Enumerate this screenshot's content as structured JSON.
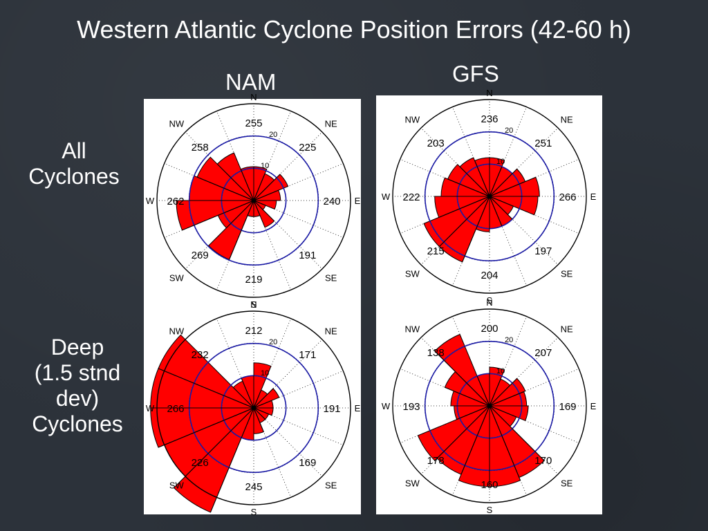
{
  "slide": {
    "title": "Western Atlantic Cyclone Position Errors (42-60 h)",
    "columns": [
      "NAM",
      "GFS"
    ],
    "rows": [
      "All\nCyclones",
      "Deep\n(1.5 stnd\ndev)\nCyclones"
    ]
  },
  "colors": {
    "wedge": "#ff0000",
    "ring": "#1a1aa6",
    "axis": "#000000"
  },
  "chart_data": [
    {
      "type": "polar-bar",
      "model": "NAM",
      "subset": "All Cyclones",
      "directions": [
        "N",
        "NE",
        "E",
        "SE",
        "S",
        "SW",
        "W",
        "NW"
      ],
      "sector_labels": [
        "255",
        "225",
        "240",
        "191",
        "219",
        "269",
        "262",
        "258"
      ],
      "ring_labels": [
        "20",
        "10"
      ],
      "wedges": [
        {
          "from": 0,
          "to": 22.5,
          "r": 10.5
        },
        {
          "from": 22.5,
          "to": 45,
          "r": 9
        },
        {
          "from": 45,
          "to": 67.5,
          "r": 11.5
        },
        {
          "from": 67.5,
          "to": 90,
          "r": 8.3
        },
        {
          "from": 90,
          "to": 112.5,
          "r": 7
        },
        {
          "from": 112.5,
          "to": 135,
          "r": 4
        },
        {
          "from": 135,
          "to": 157.5,
          "r": 9
        },
        {
          "from": 157.5,
          "to": 180,
          "r": 5
        },
        {
          "from": 180,
          "to": 202.5,
          "r": 5
        },
        {
          "from": 202.5,
          "to": 225,
          "r": 19.8
        },
        {
          "from": 225,
          "to": 247.5,
          "r": 12
        },
        {
          "from": 247.5,
          "to": 270,
          "r": 24
        },
        {
          "from": 270,
          "to": 292.5,
          "r": 20
        },
        {
          "from": 292.5,
          "to": 315,
          "r": 19
        },
        {
          "from": 315,
          "to": 337.5,
          "r": 16
        },
        {
          "from": 337.5,
          "to": 360,
          "r": 10.5
        }
      ]
    },
    {
      "type": "polar-bar",
      "model": "GFS",
      "subset": "All Cyclones",
      "directions": [
        "N",
        "NE",
        "E",
        "SE",
        "S",
        "SW",
        "W",
        "NW"
      ],
      "sector_labels": [
        "236",
        "251",
        "266",
        "197",
        "204",
        "215",
        "222",
        "203"
      ],
      "ring_labels": [
        "20",
        "10"
      ],
      "wedges": [
        {
          "from": 0,
          "to": 22.5,
          "r": 12
        },
        {
          "from": 22.5,
          "to": 45,
          "r": 10
        },
        {
          "from": 45,
          "to": 67.5,
          "r": 12
        },
        {
          "from": 67.5,
          "to": 90,
          "r": 15.5
        },
        {
          "from": 90,
          "to": 112.5,
          "r": 15
        },
        {
          "from": 112.5,
          "to": 135,
          "r": 8
        },
        {
          "from": 135,
          "to": 157.5,
          "r": 10
        },
        {
          "from": 157.5,
          "to": 180,
          "r": 10
        },
        {
          "from": 180,
          "to": 202.5,
          "r": 11
        },
        {
          "from": 202.5,
          "to": 225,
          "r": 22
        },
        {
          "from": 225,
          "to": 247.5,
          "r": 22
        },
        {
          "from": 247.5,
          "to": 270,
          "r": 17
        },
        {
          "from": 270,
          "to": 292.5,
          "r": 15
        },
        {
          "from": 292.5,
          "to": 315,
          "r": 14
        },
        {
          "from": 315,
          "to": 337.5,
          "r": 13
        },
        {
          "from": 337.5,
          "to": 360,
          "r": 12
        }
      ]
    },
    {
      "type": "polar-bar",
      "model": "NAM",
      "subset": "Deep (1.5 stnd dev) Cyclones",
      "directions": [
        "N",
        "NE",
        "E",
        "SE",
        "S",
        "SW",
        "W",
        "NW"
      ],
      "sector_labels": [
        "212",
        "171",
        "191",
        "169",
        "245",
        "226",
        "266",
        "232"
      ],
      "ring_labels": [
        "20",
        "10"
      ],
      "wedges": [
        {
          "from": 0,
          "to": 22.5,
          "r": 14
        },
        {
          "from": 22.5,
          "to": 45,
          "r": 6
        },
        {
          "from": 45,
          "to": 67.5,
          "r": 8.5
        },
        {
          "from": 67.5,
          "to": 90,
          "r": 6
        },
        {
          "from": 90,
          "to": 112.5,
          "r": 6
        },
        {
          "from": 112.5,
          "to": 135,
          "r": 5
        },
        {
          "from": 135,
          "to": 157.5,
          "r": 5
        },
        {
          "from": 157.5,
          "to": 180,
          "r": 8
        },
        {
          "from": 180,
          "to": 202.5,
          "r": 10
        },
        {
          "from": 202.5,
          "to": 225,
          "r": 35
        },
        {
          "from": 225,
          "to": 247.5,
          "r": 30
        },
        {
          "from": 247.5,
          "to": 270,
          "r": 32
        },
        {
          "from": 270,
          "to": 292.5,
          "r": 32
        },
        {
          "from": 292.5,
          "to": 315,
          "r": 32
        },
        {
          "from": 315,
          "to": 337.5,
          "r": 9
        },
        {
          "from": 337.5,
          "to": 360,
          "r": 10
        }
      ]
    },
    {
      "type": "polar-bar",
      "model": "GFS",
      "subset": "Deep (1.5 stnd dev) Cyclones",
      "directions": [
        "N",
        "NE",
        "E",
        "SE",
        "S",
        "SW",
        "W",
        "NW"
      ],
      "sector_labels": [
        "200",
        "207",
        "169",
        "170",
        "160",
        "178",
        "193",
        "138"
      ],
      "ring_labels": [
        "20",
        "10"
      ],
      "wedges": [
        {
          "from": 0,
          "to": 22.5,
          "r": 12
        },
        {
          "from": 22.5,
          "to": 45,
          "r": 9
        },
        {
          "from": 45,
          "to": 67.5,
          "r": 12
        },
        {
          "from": 67.5,
          "to": 90,
          "r": 11.5
        },
        {
          "from": 90,
          "to": 112.5,
          "r": 12
        },
        {
          "from": 112.5,
          "to": 135,
          "r": 9
        },
        {
          "from": 135,
          "to": 157.5,
          "r": 24
        },
        {
          "from": 157.5,
          "to": 180,
          "r": 25
        },
        {
          "from": 180,
          "to": 202.5,
          "r": 25
        },
        {
          "from": 202.5,
          "to": 225,
          "r": 23
        },
        {
          "from": 225,
          "to": 247.5,
          "r": 24
        },
        {
          "from": 247.5,
          "to": 270,
          "r": 11
        },
        {
          "from": 270,
          "to": 292.5,
          "r": 12
        },
        {
          "from": 292.5,
          "to": 315,
          "r": 15
        },
        {
          "from": 315,
          "to": 337.5,
          "r": 24
        },
        {
          "from": 337.5,
          "to": 360,
          "r": 10
        }
      ]
    }
  ]
}
